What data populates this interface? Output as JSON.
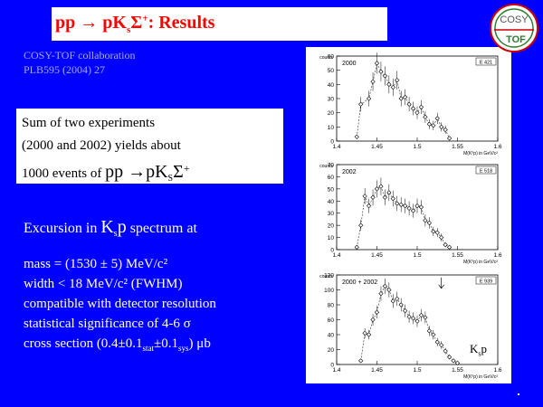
{
  "slide": {
    "title": {
      "pre": "pp ",
      "arrow": "→",
      "mid": " pK",
      "sub": "s",
      "sigma": "Σ",
      "sup": "+",
      "post": ": Results"
    },
    "collab_line1": "COSY-TOF collaboration",
    "collab_line2": "PLB595 (2004) 27",
    "sum": {
      "line1": "Sum of two experiments",
      "line2": "(2000 and 2002) yields about",
      "line3_pre": "1000 events of ",
      "line3_react": "pp →pK",
      "line3_sub": "S",
      "line3_sigma": "Σ",
      "line3_sup": "+"
    },
    "excursion": {
      "pre": "Excursion in ",
      "k": "K",
      "sub": "s",
      "p": "p",
      "post": " spectrum at"
    },
    "facts": {
      "mass": "mass  = (1530 ± 5) MeV/c²",
      "width": "width < 18 MeV/c² (FWHM)",
      "compat": "compatible with detector resolution",
      "signif": "statistical significance of 4-6 σ",
      "cross_pre": "cross section (0.4±0.1",
      "cross_stat": "stat",
      "cross_mid": "±0.1",
      "cross_sys": "sys",
      "cross_post": ") μb"
    },
    "ksp_label": {
      "k": "K",
      "sub": "s",
      "p": "p"
    },
    "logo": {
      "top": "COSY",
      "bottom": "TOF"
    }
  },
  "chart_data": [
    {
      "type": "scatter",
      "title": "2000",
      "corner_label": "E 421",
      "xlabel": "M(K⁰p) in GeV/c²",
      "ylabel": "counts",
      "xlim": [
        1.4,
        1.6
      ],
      "ylim": [
        0,
        60
      ],
      "xticks": [
        "1.4",
        "1.45",
        "1.5",
        "1.55",
        "1.6"
      ],
      "yticks": [
        "0",
        "10",
        "20",
        "30",
        "40",
        "50",
        "60"
      ],
      "x": [
        1.425,
        1.43,
        1.44,
        1.445,
        1.45,
        1.455,
        1.46,
        1.465,
        1.47,
        1.475,
        1.48,
        1.485,
        1.49,
        1.495,
        1.5,
        1.505,
        1.51,
        1.515,
        1.52,
        1.525,
        1.53,
        1.535,
        1.54
      ],
      "y": [
        3,
        26,
        30,
        42,
        55,
        49,
        46,
        40,
        38,
        43,
        30,
        31,
        26,
        23,
        20,
        24,
        17,
        12,
        11,
        16,
        10,
        8,
        2
      ]
    },
    {
      "type": "scatter",
      "title": "2002",
      "corner_label": "E 518",
      "xlabel": "M(K⁰p) in GeV/c²",
      "ylabel": "counts",
      "xlim": [
        1.4,
        1.6
      ],
      "ylim": [
        0,
        70
      ],
      "xticks": [
        "1.4",
        "1.45",
        "1.5",
        "1.55",
        "1.6"
      ],
      "yticks": [
        "0",
        "10",
        "20",
        "30",
        "40",
        "50",
        "60",
        "70"
      ],
      "x": [
        1.425,
        1.43,
        1.435,
        1.44,
        1.445,
        1.45,
        1.455,
        1.46,
        1.465,
        1.47,
        1.475,
        1.48,
        1.485,
        1.49,
        1.495,
        1.5,
        1.505,
        1.51,
        1.515,
        1.52,
        1.525,
        1.53,
        1.535,
        1.54
      ],
      "y": [
        2,
        20,
        44,
        36,
        43,
        50,
        52,
        43,
        47,
        42,
        38,
        37,
        36,
        34,
        32,
        36,
        35,
        24,
        22,
        15,
        14,
        10,
        4,
        2
      ]
    },
    {
      "type": "scatter",
      "title": "2000 + 2002",
      "corner_label": "E 939",
      "xlabel": "M(K⁰p) in GeV/c²",
      "ylabel": "counts",
      "xlim": [
        1.4,
        1.6
      ],
      "ylim": [
        0,
        120
      ],
      "xticks": [
        "1.4",
        "1.45",
        "1.5",
        "1.55",
        "1.6"
      ],
      "yticks": [
        "0",
        "20",
        "40",
        "60",
        "80",
        "100",
        "120"
      ],
      "x": [
        1.43,
        1.435,
        1.44,
        1.445,
        1.45,
        1.455,
        1.46,
        1.465,
        1.47,
        1.475,
        1.48,
        1.485,
        1.49,
        1.495,
        1.5,
        1.505,
        1.51,
        1.515,
        1.52,
        1.525,
        1.53,
        1.535,
        1.54,
        1.545,
        1.55
      ],
      "y": [
        5,
        42,
        40,
        60,
        70,
        95,
        105,
        100,
        85,
        88,
        80,
        72,
        64,
        62,
        58,
        66,
        63,
        45,
        40,
        30,
        26,
        18,
        10,
        5,
        2
      ],
      "arrow_x": 1.53
    }
  ]
}
